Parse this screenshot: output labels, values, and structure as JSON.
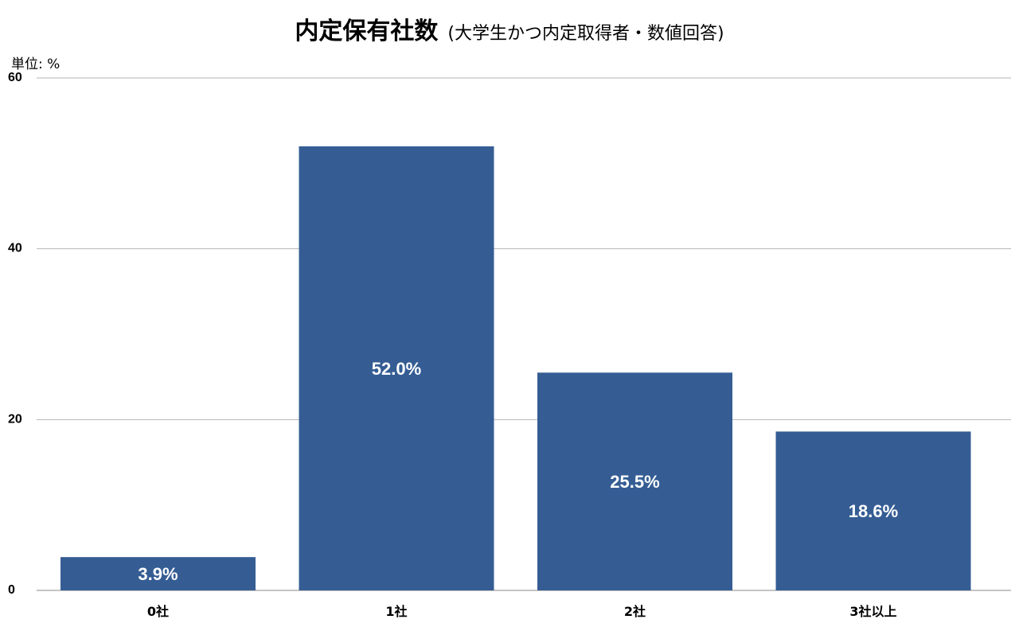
{
  "chart_data": {
    "type": "bar",
    "title": "内定保有社数",
    "subtitle": "(大学生かつ内定取得者・数値回答)",
    "unit_label": "単位: %",
    "categories": [
      "0社",
      "1社",
      "2社",
      "3社以上"
    ],
    "values": [
      3.9,
      52.0,
      25.5,
      18.6
    ],
    "data_labels": [
      "3.9%",
      "52.0%",
      "25.5%",
      "18.6%"
    ],
    "ylim": [
      0,
      60
    ],
    "yticks": [
      0,
      20,
      40,
      60
    ],
    "ytick_labels": [
      "0",
      "20",
      "40",
      "60"
    ],
    "grid": true,
    "legend": "none",
    "bar_color": "#355d94",
    "grid_color": "#b4b4b4"
  }
}
